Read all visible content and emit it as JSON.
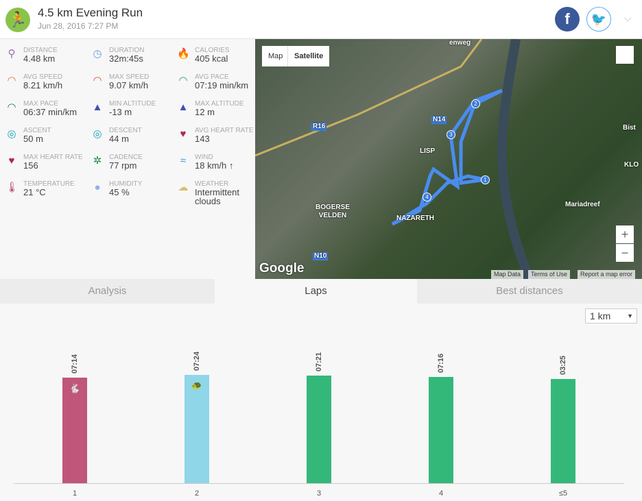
{
  "header": {
    "title": "4.5 km Evening Run",
    "date": "Jun 28, 2016 7:27 PM"
  },
  "stats": [
    {
      "label": "Distance",
      "value": "4.48 km",
      "icon": "location-pins-icon",
      "color": "#9c6bb5",
      "glyph": "⚲"
    },
    {
      "label": "Duration",
      "value": "32m:45s",
      "icon": "stopwatch-icon",
      "color": "#6b9be0",
      "glyph": "◷"
    },
    {
      "label": "Calories",
      "value": "405 kcal",
      "icon": "flame-icon",
      "color": "#f26b3a",
      "glyph": "🔥"
    },
    {
      "label": "Avg speed",
      "value": "8.21 km/h",
      "icon": "speedometer-icon",
      "color": "#f26b3a",
      "glyph": "◠"
    },
    {
      "label": "Max speed",
      "value": "9.07 km/h",
      "icon": "speedometer-icon",
      "color": "#e04a2f",
      "glyph": "◠"
    },
    {
      "label": "Avg pace",
      "value": "07:19 min/km",
      "icon": "pace-gauge-icon",
      "color": "#1e9e6a",
      "glyph": "◠"
    },
    {
      "label": "Max pace",
      "value": "06:37 min/km",
      "icon": "pace-gauge-icon",
      "color": "#1a7a5a",
      "glyph": "◠"
    },
    {
      "label": "Min altitude",
      "value": "-13 m",
      "icon": "mountain-low-icon",
      "color": "#3f51b5",
      "glyph": "▲"
    },
    {
      "label": "Max altitude",
      "value": "12 m",
      "icon": "mountain-high-icon",
      "color": "#3f51b5",
      "glyph": "▲"
    },
    {
      "label": "Ascent",
      "value": "50 m",
      "icon": "ascent-compass-icon",
      "color": "#17a2b8",
      "glyph": "◎"
    },
    {
      "label": "Descent",
      "value": "44 m",
      "icon": "descent-compass-icon",
      "color": "#17a2b8",
      "glyph": "◎"
    },
    {
      "label": "Avg heart rate",
      "value": "143",
      "icon": "heart-icon",
      "color": "#b0284a",
      "glyph": "♥"
    },
    {
      "label": "Max heart rate",
      "value": "156",
      "icon": "heart-icon",
      "color": "#b0284a",
      "glyph": "♥"
    },
    {
      "label": "Cadence",
      "value": "77 rpm",
      "icon": "cadence-wheel-icon",
      "color": "#1e8e4a",
      "glyph": "✲"
    },
    {
      "label": "Wind",
      "value": "18 km/h ↑",
      "icon": "wind-icon",
      "color": "#2aa5c8",
      "glyph": "≈"
    },
    {
      "label": "Temperature",
      "value": "21 °C",
      "icon": "thermometer-icon",
      "color": "#b0406a",
      "glyph": "🌡"
    },
    {
      "label": "Humidity",
      "value": "45 %",
      "icon": "humidity-drops-icon",
      "color": "#8fb0f0",
      "glyph": "●"
    },
    {
      "label": "Weather",
      "value": "Intermittent clouds",
      "icon": "partly-cloudy-icon",
      "color": "#d8c070",
      "glyph": "☁"
    }
  ],
  "map": {
    "map_label": "Map",
    "satellite_label": "Satellite",
    "logo": "Google",
    "map_data": "Map Data",
    "terms": "Terms of Use",
    "report": "Report a map error",
    "zoom_in": "+",
    "zoom_out": "−",
    "places": [
      "LISP",
      "BOGERSE VELDEN",
      "NAZARETH",
      "N14",
      "R16",
      "N10",
      "Mariadreef",
      "KLO",
      "Bist",
      "enweg"
    ],
    "lap_markers": [
      "1",
      "2",
      "3",
      "4"
    ]
  },
  "tabs": [
    {
      "label": "Analysis"
    },
    {
      "label": "Laps"
    },
    {
      "label": "Best distances"
    }
  ],
  "split_select": {
    "value": "1 km"
  },
  "chart_data": {
    "type": "bar",
    "categories": [
      "1",
      "2",
      "3",
      "4",
      "≤5"
    ],
    "labels": [
      "07:14",
      "07:24",
      "07:21",
      "07:16",
      "03:25"
    ],
    "values": [
      434,
      444,
      441,
      436,
      427
    ],
    "value_unit": "pace seconds per km",
    "colors": [
      "#c0567a",
      "#8fd6e8",
      "#34b87a",
      "#34b87a",
      "#34b87a"
    ],
    "markers": [
      "fastest-rabbit",
      "slowest-turtle",
      "",
      "",
      ""
    ]
  }
}
